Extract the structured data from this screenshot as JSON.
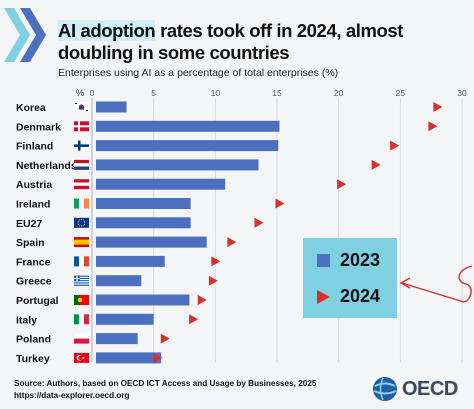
{
  "title_part1": "AI adoption",
  "title_part2": " rates took off in 2024, almost doubling in some countries",
  "subtitle": "Enterprises using AI as a percentage of total enterprises (%)",
  "source_line1": "Source: Authors, based on OECD ICT Access and Usage by Businesses, 2025",
  "source_line2": "https://data-explorer.oecd.org",
  "brand": "OECD",
  "colors": {
    "bar": "#4d6fc0",
    "marker": "#d9302b",
    "legend_bg": "#7fd0e0",
    "highlight": "#cfeef5"
  },
  "chart_data": {
    "type": "bar",
    "orientation": "horizontal",
    "axis_label": "%",
    "xlim": [
      0,
      30
    ],
    "xticks": [
      0,
      5,
      10,
      15,
      20,
      25,
      30
    ],
    "categories": [
      "Korea",
      "Denmark",
      "Finland",
      "Netherlands",
      "Austria",
      "Ireland",
      "EU27",
      "Spain",
      "France",
      "Greece",
      "Portugal",
      "Italy",
      "Poland",
      "Turkey"
    ],
    "flags": [
      "korea",
      "denmark",
      "finland",
      "netherlands",
      "austria",
      "ireland",
      "eu",
      "spain",
      "france",
      "greece",
      "portugal",
      "italy",
      "poland",
      "turkey"
    ],
    "series": [
      {
        "name": "2023",
        "mark": "bar",
        "values": [
          2.8,
          15.2,
          15.1,
          13.5,
          10.8,
          8.0,
          8.0,
          9.3,
          5.9,
          4.0,
          7.9,
          5.0,
          3.7,
          5.6
        ]
      },
      {
        "name": "2024",
        "mark": "triangle",
        "values": [
          28.0,
          27.6,
          24.5,
          23.0,
          20.2,
          15.2,
          13.5,
          11.3,
          10.0,
          9.8,
          8.9,
          8.2,
          5.9,
          5.3
        ]
      }
    ],
    "legend": [
      "2023",
      "2024"
    ],
    "legend_position": "bottom-right"
  }
}
